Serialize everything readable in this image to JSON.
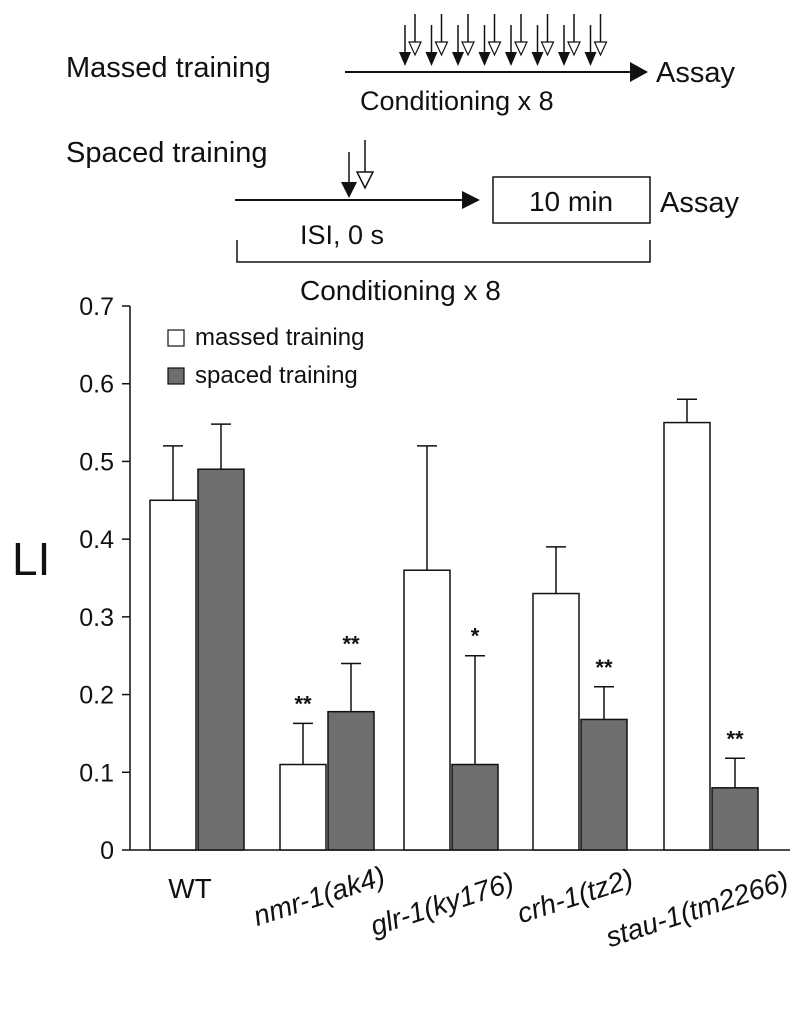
{
  "schematic": {
    "massed_label": "Massed training",
    "massed_conditioning": "Conditioning x 8",
    "assay_massed": "Assay",
    "spaced_label": "Spaced training",
    "isi_label": "ISI, 0 s",
    "interval_box": "10 min",
    "assay_spaced": "Assay",
    "spaced_conditioning": "Conditioning x 8"
  },
  "chart_data": {
    "type": "bar",
    "ylabel": "LI",
    "ylim": [
      0,
      0.7
    ],
    "yticks": [
      "0",
      "0.1",
      "0.2",
      "0.3",
      "0.4",
      "0.5",
      "0.6",
      "0.7"
    ],
    "categories": [
      "WT",
      "nmr-1(ak4)",
      "glr-1(ky176)",
      "crh-1(tz2)",
      "stau-1(tm2266)"
    ],
    "legend_position": "top-left",
    "series": [
      {
        "name": "massed training",
        "color": "#ffffff",
        "values": [
          0.45,
          0.11,
          0.36,
          0.33,
          0.55
        ],
        "errors": [
          0.07,
          0.053,
          0.16,
          0.06,
          0.03
        ],
        "significance": [
          "",
          "**",
          "",
          "",
          ""
        ]
      },
      {
        "name": "spaced training",
        "color": "#6e6e6e",
        "values": [
          0.49,
          0.178,
          0.11,
          0.168,
          0.08
        ],
        "errors": [
          0.058,
          0.062,
          0.14,
          0.042,
          0.038
        ],
        "significance": [
          "",
          "**",
          "*",
          "**",
          "**"
        ]
      }
    ]
  }
}
